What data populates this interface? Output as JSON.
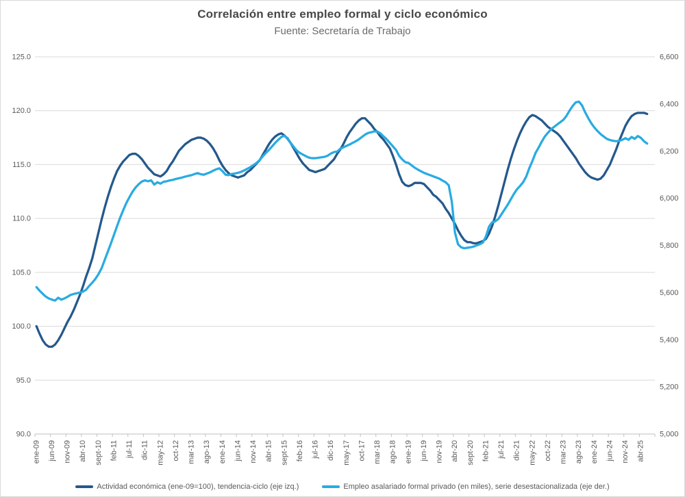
{
  "header": {
    "title": "Correlación entre empleo formal y ciclo económico",
    "subtitle": "Fuente: Secretaría de Trabajo"
  },
  "legend": {
    "items": [
      {
        "id": "actividad",
        "label": "Actividad económica (ene-09=100), tendencia-ciclo (eje izq.)",
        "color": "#24598C"
      },
      {
        "id": "empleo",
        "label": "Empleo asalariado formal privado (en miles), serie desestacionalizada (eje der.)",
        "color": "#29ABE2"
      }
    ]
  },
  "colors": {
    "gridline": "#d9d9d9",
    "axis_line": "#bfbfbf",
    "axis_text": "#595959",
    "series_dark_blue": "#24598C",
    "series_light_blue": "#29ABE2"
  },
  "chart_data": {
    "type": "line",
    "title": "Correlación entre empleo formal y ciclo económico",
    "subtitle": "Fuente: Secretaría de Trabajo",
    "grid": "horizontal",
    "legend_position": "bottom",
    "x_frequency": "monthly",
    "x_start": "ene-09",
    "x_end": "jun-25",
    "axis_months": 200,
    "x_tick_labels": [
      "ene-09",
      "jun-09",
      "nov-09",
      "abr-10",
      "sept-10",
      "feb-11",
      "jul-11",
      "dic-11",
      "may-12",
      "oct-12",
      "mar-13",
      "ago-13",
      "ene-14",
      "jun-14",
      "nov-14",
      "abr-15",
      "sept-15",
      "feb-16",
      "jul-16",
      "dic-16",
      "may-17",
      "oct-17",
      "mar-18",
      "ago-18",
      "ene-19",
      "jun-19",
      "nov-19",
      "abr-20",
      "sept-20",
      "feb-21",
      "jul-21",
      "dic-21",
      "may-22",
      "oct-22",
      "mar-23",
      "ago-23",
      "ene-24",
      "jun-24",
      "nov-24",
      "abr-25"
    ],
    "left_axis": {
      "ticks": [
        125,
        120,
        115,
        110,
        105,
        100,
        95,
        90
      ],
      "range": [
        90,
        125
      ],
      "format": "one_decimal"
    },
    "right_axis": {
      "ticks": [
        6600,
        6400,
        6200,
        6000,
        5800,
        5600,
        5400,
        5200,
        5000
      ],
      "range": [
        5000,
        6600
      ],
      "format": "thousands"
    },
    "series": [
      {
        "name": "Actividad económica (ene-09=100), tendencia-ciclo (eje izq.)",
        "axis": "left",
        "color": "#24598C",
        "values": [
          100.0,
          99.3,
          98.7,
          98.3,
          98.1,
          98.1,
          98.3,
          98.7,
          99.2,
          99.8,
          100.4,
          100.9,
          101.5,
          102.2,
          102.9,
          103.7,
          104.6,
          105.4,
          106.3,
          107.5,
          108.7,
          109.9,
          111.0,
          112.0,
          112.9,
          113.7,
          114.4,
          114.9,
          115.3,
          115.6,
          115.9,
          116.0,
          116.0,
          115.8,
          115.5,
          115.1,
          114.7,
          114.4,
          114.1,
          114.0,
          113.9,
          114.1,
          114.4,
          114.9,
          115.3,
          115.8,
          116.3,
          116.6,
          116.9,
          117.1,
          117.3,
          117.4,
          117.5,
          117.5,
          117.4,
          117.2,
          116.9,
          116.5,
          116.0,
          115.4,
          114.9,
          114.5,
          114.2,
          114.0,
          113.9,
          113.8,
          113.9,
          114.0,
          114.3,
          114.5,
          114.8,
          115.1,
          115.4,
          115.9,
          116.4,
          116.9,
          117.3,
          117.6,
          117.8,
          117.9,
          117.7,
          117.4,
          117.0,
          116.5,
          116.0,
          115.5,
          115.1,
          114.8,
          114.5,
          114.4,
          114.3,
          114.4,
          114.5,
          114.6,
          114.9,
          115.2,
          115.5,
          116.0,
          116.4,
          116.9,
          117.5,
          118.0,
          118.4,
          118.8,
          119.1,
          119.3,
          119.3,
          119.0,
          118.7,
          118.3,
          118.0,
          117.6,
          117.3,
          116.9,
          116.5,
          115.8,
          115.0,
          114.1,
          113.4,
          113.1,
          113.0,
          113.1,
          113.3,
          113.3,
          113.3,
          113.2,
          112.9,
          112.6,
          112.2,
          112.0,
          111.7,
          111.4,
          110.9,
          110.5,
          110.0,
          109.5,
          108.9,
          108.4,
          108.0,
          107.8,
          107.8,
          107.7,
          107.7,
          107.8,
          107.9,
          108.1,
          108.6,
          109.3,
          110.2,
          111.2,
          112.3,
          113.4,
          114.5,
          115.5,
          116.4,
          117.2,
          117.9,
          118.5,
          119.0,
          119.4,
          119.6,
          119.5,
          119.3,
          119.1,
          118.8,
          118.5,
          118.3,
          118.1,
          117.9,
          117.6,
          117.2,
          116.8,
          116.4,
          116.0,
          115.6,
          115.1,
          114.7,
          114.3,
          114.0,
          113.8,
          113.7,
          113.6,
          113.7,
          114.0,
          114.5,
          115.0,
          115.7,
          116.4,
          117.2,
          117.9,
          118.6,
          119.1,
          119.5,
          119.7,
          119.8,
          119.8,
          119.8,
          119.7
        ]
      },
      {
        "name": "Empleo asalariado formal privado (en miles), serie desestacionalizada (eje der.)",
        "axis": "right",
        "color": "#29ABE2",
        "values": [
          5623,
          5608,
          5595,
          5583,
          5575,
          5570,
          5566,
          5578,
          5570,
          5575,
          5582,
          5590,
          5594,
          5597,
          5600,
          5604,
          5612,
          5628,
          5642,
          5658,
          5678,
          5703,
          5738,
          5773,
          5808,
          5845,
          5882,
          5918,
          5950,
          5980,
          6005,
          6028,
          6046,
          6060,
          6071,
          6076,
          6072,
          6076,
          6058,
          6068,
          6062,
          6070,
          6072,
          6076,
          6078,
          6082,
          6085,
          6088,
          6092,
          6095,
          6098,
          6103,
          6107,
          6102,
          6100,
          6105,
          6110,
          6117,
          6123,
          6127,
          6115,
          6100,
          6098,
          6103,
          6105,
          6108,
          6112,
          6118,
          6125,
          6132,
          6141,
          6150,
          6162,
          6178,
          6192,
          6205,
          6220,
          6235,
          6248,
          6260,
          6265,
          6255,
          6235,
          6218,
          6202,
          6192,
          6185,
          6178,
          6172,
          6170,
          6170,
          6172,
          6174,
          6176,
          6181,
          6190,
          6196,
          6198,
          6210,
          6216,
          6222,
          6228,
          6235,
          6242,
          6250,
          6260,
          6270,
          6277,
          6280,
          6284,
          6283,
          6275,
          6262,
          6250,
          6235,
          6220,
          6205,
          6180,
          6165,
          6153,
          6150,
          6140,
          6130,
          6122,
          6115,
          6108,
          6103,
          6098,
          6093,
          6088,
          6083,
          6075,
          6068,
          6055,
          5985,
          5855,
          5805,
          5792,
          5788,
          5790,
          5792,
          5795,
          5800,
          5805,
          5812,
          5838,
          5880,
          5898,
          5902,
          5912,
          5932,
          5952,
          5972,
          5995,
          6018,
          6038,
          6052,
          6068,
          6092,
          6128,
          6158,
          6192,
          6215,
          6240,
          6262,
          6278,
          6292,
          6303,
          6313,
          6323,
          6333,
          6350,
          6372,
          6392,
          6407,
          6410,
          6394,
          6365,
          6340,
          6318,
          6300,
          6285,
          6272,
          6262,
          6252,
          6247,
          6244,
          6242,
          6243,
          6248,
          6255,
          6248,
          6260,
          6252,
          6264,
          6256,
          6242,
          6232
        ]
      }
    ]
  }
}
